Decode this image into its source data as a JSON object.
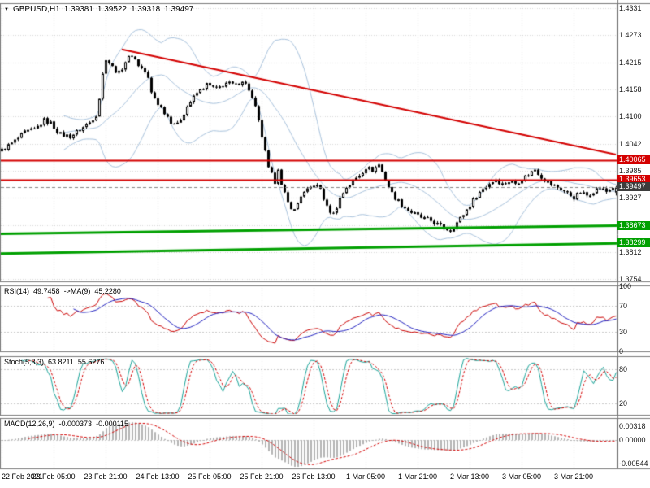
{
  "window": {
    "symbol_timeframe": "GBPUSD,H1",
    "ohlc": {
      "open": "1.39381",
      "high": "1.39522",
      "low": "1.39318",
      "close": "1.39497"
    }
  },
  "price_axis": {
    "labels": [
      "1.4331",
      "1.4273",
      "1.4215",
      "1.4158",
      "1.4100",
      "1.4042",
      "1.3985",
      "1.3927",
      "1.3869",
      "1.3812",
      "1.3754"
    ]
  },
  "badges": [
    {
      "name": "resistance-1",
      "value": "1.40065",
      "bg": "#d40000"
    },
    {
      "name": "resistance-2",
      "value": "1.39653",
      "bg": "#d40000"
    },
    {
      "name": "current-price",
      "value": "1.39497",
      "bg": "#3c3c3c"
    },
    {
      "name": "support-1",
      "value": "1.38673",
      "bg": "#00a000"
    },
    {
      "name": "support-2",
      "value": "1.38299",
      "bg": "#00a000"
    }
  ],
  "indicators": {
    "rsi": {
      "name": "RSI(14)",
      "value": "49.7458",
      "ma_name": "->MA(9)",
      "ma_value": "45.2280",
      "axis": [
        "100",
        "70",
        "30",
        "0"
      ]
    },
    "stoch": {
      "name": "Stoch(5,3,3)",
      "value": "63.8211",
      "signal_value": "55.6276",
      "axis": [
        "80",
        "20"
      ]
    },
    "macd": {
      "name": "MACD(12,26,9)",
      "value": "-0.000373",
      "signal_value": "-0.000115",
      "axis": [
        "0.00318",
        "0.00000",
        "-0.00544"
      ]
    }
  },
  "time_axis": {
    "labels": [
      "22 Feb 2021",
      "23 Feb 05:00",
      "23 Feb 21:00",
      "24 Feb 13:00",
      "25 Feb 05:00",
      "25 Feb 21:00",
      "26 Feb 13:00",
      "1 Mar 05:00",
      "1 Mar 21:00",
      "2 Mar 13:00",
      "3 Mar 05:00",
      "3 Mar 21:00"
    ]
  },
  "colors": {
    "bull_body": "#ffffff",
    "bear_body": "#000000",
    "wick": "#000000",
    "bollinger": "#a9c3dd",
    "trendline": "#d40000",
    "resistance": "#d40000",
    "support": "#00a000",
    "grid": "#d8d8d8",
    "panel_border": "#7a7a7a",
    "rsi_line": "#cc0000",
    "rsi_ma": "#2020c0",
    "stoch_k": "#17a398",
    "stoch_d": "#d40000",
    "macd_hist": "#b4b4b4",
    "macd_signal": "#d40000",
    "current_price_line": "#888888"
  },
  "chart_data": {
    "type": "candlestick",
    "title": "GBPUSD,H1",
    "symbol": "GBPUSD",
    "timeframe": "H1",
    "bars": 190,
    "ylim": [
      1.3754,
      1.4331
    ],
    "y_axis_labels": [
      "1.4331",
      "1.4273",
      "1.4215",
      "1.4158",
      "1.4100",
      "1.4042",
      "1.3985",
      "1.3927",
      "1.3869",
      "1.3812",
      "1.3754"
    ],
    "x_axis_labels": [
      "22 Feb 2021",
      "23 Feb 05:00",
      "23 Feb 21:00",
      "24 Feb 13:00",
      "25 Feb 05:00",
      "25 Feb 21:00",
      "26 Feb 13:00",
      "1 Mar 05:00",
      "1 Mar 21:00",
      "2 Mar 13:00",
      "3 Mar 05:00",
      "3 Mar 21:00"
    ],
    "current_bar": {
      "open": 1.39381,
      "high": 1.39522,
      "low": 1.39318,
      "close": 1.39497
    },
    "price_path_anchors": [
      [
        0,
        1.4028
      ],
      [
        4,
        1.4048
      ],
      [
        7,
        1.4066
      ],
      [
        10,
        1.4072
      ],
      [
        13,
        1.4092
      ],
      [
        15,
        1.4086
      ],
      [
        18,
        1.4062
      ],
      [
        21,
        1.4058
      ],
      [
        24,
        1.4072
      ],
      [
        27,
        1.4088
      ],
      [
        29,
        1.4105
      ],
      [
        30,
        1.414
      ],
      [
        31,
        1.419
      ],
      [
        32,
        1.4225
      ],
      [
        34,
        1.4205
      ],
      [
        36,
        1.4192
      ],
      [
        38,
        1.4218
      ],
      [
        40,
        1.4232
      ],
      [
        42,
        1.421
      ],
      [
        44,
        1.4195
      ],
      [
        45,
        1.418
      ],
      [
        46,
        1.415
      ],
      [
        48,
        1.4128
      ],
      [
        50,
        1.411
      ],
      [
        52,
        1.409
      ],
      [
        54,
        1.4082
      ],
      [
        57,
        1.4122
      ],
      [
        60,
        1.415
      ],
      [
        63,
        1.4168
      ],
      [
        66,
        1.4158
      ],
      [
        69,
        1.4172
      ],
      [
        72,
        1.4166
      ],
      [
        74,
        1.4178
      ],
      [
        76,
        1.4158
      ],
      [
        78,
        1.4118
      ],
      [
        80,
        1.4058
      ],
      [
        82,
        1.3988
      ],
      [
        84,
        1.3962
      ],
      [
        85,
        1.3992
      ],
      [
        86,
        1.3952
      ],
      [
        88,
        1.3916
      ],
      [
        90,
        1.39
      ],
      [
        92,
        1.3932
      ],
      [
        94,
        1.3942
      ],
      [
        96,
        1.3956
      ],
      [
        98,
        1.3946
      ],
      [
        100,
        1.3906
      ],
      [
        102,
        1.3892
      ],
      [
        104,
        1.3926
      ],
      [
        106,
        1.395
      ],
      [
        108,
        1.3962
      ],
      [
        110,
        1.3976
      ],
      [
        112,
        1.3992
      ],
      [
        114,
        1.3986
      ],
      [
        116,
        1.3998
      ],
      [
        118,
        1.3966
      ],
      [
        120,
        1.3936
      ],
      [
        122,
        1.392
      ],
      [
        124,
        1.3906
      ],
      [
        126,
        1.3896
      ],
      [
        128,
        1.3888
      ],
      [
        130,
        1.3882
      ],
      [
        132,
        1.3878
      ],
      [
        134,
        1.387
      ],
      [
        136,
        1.3862
      ],
      [
        138,
        1.3858
      ],
      [
        140,
        1.3874
      ],
      [
        142,
        1.3892
      ],
      [
        144,
        1.3912
      ],
      [
        146,
        1.3932
      ],
      [
        148,
        1.3946
      ],
      [
        150,
        1.3958
      ],
      [
        152,
        1.3966
      ],
      [
        154,
        1.3956
      ],
      [
        156,
        1.3962
      ],
      [
        158,
        1.3958
      ],
      [
        160,
        1.3968
      ],
      [
        162,
        1.3976
      ],
      [
        164,
        1.3988
      ],
      [
        166,
        1.3972
      ],
      [
        168,
        1.396
      ],
      [
        170,
        1.3952
      ],
      [
        172,
        1.3946
      ],
      [
        174,
        1.3936
      ],
      [
        176,
        1.3928
      ],
      [
        178,
        1.3938
      ],
      [
        180,
        1.3932
      ],
      [
        182,
        1.3942
      ],
      [
        184,
        1.3948
      ],
      [
        186,
        1.394
      ],
      [
        188,
        1.395
      ],
      [
        189,
        1.395
      ]
    ],
    "overlays": {
      "trendline": {
        "from": [
          37,
          1.4243
        ],
        "to": [
          189,
          1.4019
        ],
        "color": "#d40000"
      },
      "hlines": [
        {
          "price": 1.40065,
          "color": "#d40000"
        },
        {
          "price": 1.39653,
          "color": "#d40000"
        }
      ],
      "support_lines": [
        {
          "from_price": 1.385,
          "to_price": 1.38673,
          "color": "#00a000"
        },
        {
          "from_price": 1.3808,
          "to_price": 1.38299,
          "color": "#00a000"
        }
      ],
      "current_price": 1.39497,
      "bollinger": {
        "period": 20,
        "deviation": 2
      }
    },
    "indicator_panels": [
      {
        "name": "RSI",
        "label": "RSI(14)",
        "current_values": [
          49.7458,
          45.228
        ],
        "range": [
          0,
          100
        ],
        "levels": [
          70,
          30
        ],
        "axis_labels": [
          "100",
          "70",
          "30",
          "0"
        ]
      },
      {
        "name": "Stochastic",
        "label": "Stoch(5,3,3)",
        "current_values": [
          63.8211,
          55.6276
        ],
        "range": [
          0,
          100
        ],
        "levels": [
          80,
          20
        ],
        "axis_labels": [
          "80",
          "20"
        ]
      },
      {
        "name": "MACD",
        "label": "MACD(12,26,9)",
        "current_values": [
          -0.000373,
          -0.000115
        ],
        "levels": [
          0
        ],
        "axis_labels": [
          "0.00318",
          "0.00000",
          "-0.00544"
        ]
      }
    ]
  }
}
